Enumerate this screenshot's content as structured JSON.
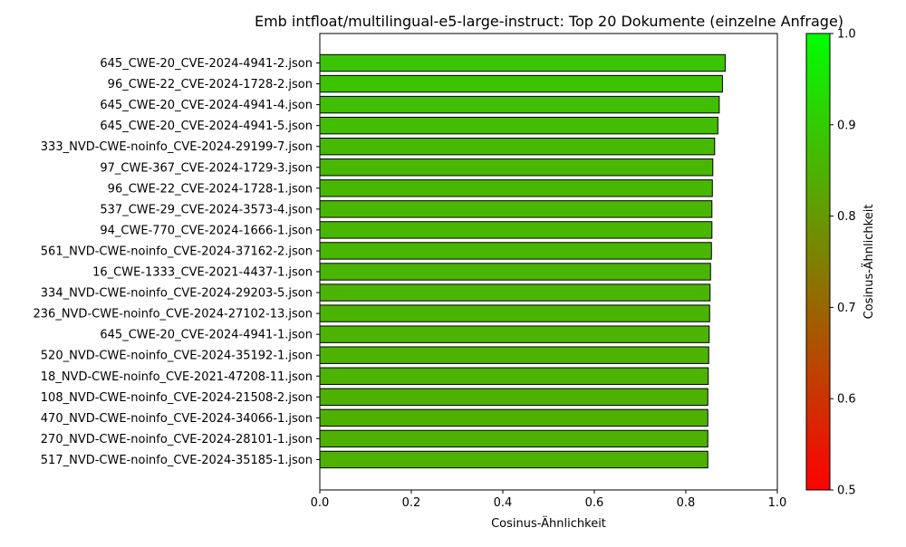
{
  "chart_data": {
    "type": "bar",
    "orientation": "horizontal",
    "title": "Emb intfloat/multilingual-e5-large-instruct: Top 20 Dokumente (einzelne Anfrage)",
    "xlabel": "Cosinus-Ähnlichkeit",
    "ylabel": "",
    "xlim": [
      0.0,
      1.0
    ],
    "xticks": [
      "0.0",
      "0.2",
      "0.4",
      "0.6",
      "0.8",
      "1.0"
    ],
    "grid": false,
    "categories": [
      "645_CWE-20_CVE-2024-4941-2.json",
      "96_CWE-22_CVE-2024-1728-2.json",
      "645_CWE-20_CVE-2024-4941-4.json",
      "645_CWE-20_CVE-2024-4941-5.json",
      "333_NVD-CWE-noinfo_CVE-2024-29199-7.json",
      "97_CWE-367_CVE-2024-1729-3.json",
      "96_CWE-22_CVE-2024-1728-1.json",
      "537_CWE-29_CVE-2024-3573-4.json",
      "94_CWE-770_CVE-2024-1666-1.json",
      "561_NVD-CWE-noinfo_CVE-2024-37162-2.json",
      "16_CWE-1333_CVE-2021-4437-1.json",
      "334_NVD-CWE-noinfo_CVE-2024-29203-5.json",
      "236_NVD-CWE-noinfo_CVE-2024-27102-13.json",
      "645_CWE-20_CVE-2024-4941-1.json",
      "520_NVD-CWE-noinfo_CVE-2024-35192-1.json",
      "18_NVD-CWE-noinfo_CVE-2021-47208-11.json",
      "108_NVD-CWE-noinfo_CVE-2024-21508-2.json",
      "470_NVD-CWE-noinfo_CVE-2024-34066-1.json",
      "270_NVD-CWE-noinfo_CVE-2024-28101-1.json",
      "517_NVD-CWE-noinfo_CVE-2024-35185-1.json"
    ],
    "values": [
      0.886,
      0.88,
      0.873,
      0.87,
      0.863,
      0.859,
      0.858,
      0.857,
      0.857,
      0.856,
      0.854,
      0.853,
      0.852,
      0.851,
      0.85,
      0.849,
      0.848,
      0.848,
      0.848,
      0.848
    ],
    "colorbar": {
      "label": "Cosinus-Ähnlichkeit",
      "range": [
        0.5,
        1.0
      ],
      "ticks": [
        "0.5",
        "0.6",
        "0.7",
        "0.8",
        "0.9",
        "1.0"
      ],
      "color_low": "#ff0000",
      "color_high": "#00ff00"
    },
    "bar_edge_color": "#000000"
  }
}
